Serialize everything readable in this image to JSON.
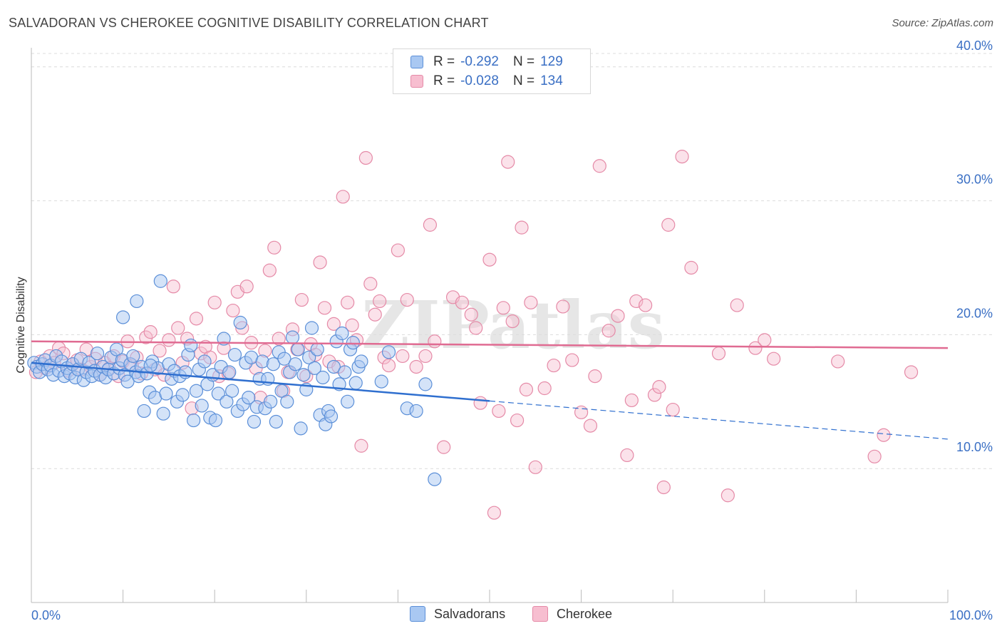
{
  "title": "SALVADORAN VS CHEROKEE COGNITIVE DISABILITY CORRELATION CHART",
  "source": "Source: ZipAtlas.com",
  "watermark": "ZIPatlas",
  "legend": {
    "rows": [
      {
        "r_label": "R =",
        "r_value": "-0.292",
        "n_label": "N =",
        "n_value": "129"
      },
      {
        "r_label": "R =",
        "r_value": "-0.028",
        "n_label": "N =",
        "n_value": "134"
      }
    ]
  },
  "bottom_legend": [
    "Salvadorans",
    "Cherokee"
  ],
  "colors": {
    "salvadoran_fill": "#a9c8f2",
    "salvadoran_stroke": "#5b8fd8",
    "salvadoran_line": "#2f6fcf",
    "cherokee_fill": "#f7bed0",
    "cherokee_stroke": "#e58aa7",
    "cherokee_line": "#e06b92",
    "tick_text": "#3a6fc4",
    "grid": "#dcdcdc"
  },
  "chart_data": {
    "type": "scatter",
    "title": "SALVADORAN VS CHEROKEE COGNITIVE DISABILITY CORRELATION CHART",
    "xlabel": "",
    "ylabel": "Cognitive Disability",
    "xlim": [
      0,
      100
    ],
    "ylim": [
      0,
      41
    ],
    "x_ticks": [
      "0.0%",
      "100.0%"
    ],
    "y_ticks": [
      {
        "value": 10,
        "label": "10.0%"
      },
      {
        "value": 20,
        "label": "20.0%"
      },
      {
        "value": 30,
        "label": "30.0%"
      },
      {
        "value": 40,
        "label": "40.0%"
      }
    ],
    "grid": true,
    "legend_position": "top-center",
    "series": [
      {
        "name": "Salvadorans",
        "r": -0.292,
        "n": 129,
        "trend": {
          "x": [
            0,
            100
          ],
          "y": [
            17.9,
            12.2
          ],
          "solid_until_x": 50
        },
        "points": [
          [
            0.3,
            17.9
          ],
          [
            0.6,
            17.6
          ],
          [
            0.9,
            17.2
          ],
          [
            1.2,
            17.8
          ],
          [
            1.5,
            18.1
          ],
          [
            1.8,
            17.4
          ],
          [
            2.1,
            17.7
          ],
          [
            2.4,
            17.0
          ],
          [
            2.7,
            18.4
          ],
          [
            3.0,
            17.3
          ],
          [
            3.3,
            18.0
          ],
          [
            3.6,
            16.9
          ],
          [
            3.9,
            17.5
          ],
          [
            4.2,
            17.1
          ],
          [
            4.5,
            17.8
          ],
          [
            4.8,
            16.8
          ],
          [
            5.1,
            17.4
          ],
          [
            5.4,
            18.2
          ],
          [
            5.7,
            16.6
          ],
          [
            6.0,
            17.2
          ],
          [
            6.3,
            17.9
          ],
          [
            6.6,
            16.9
          ],
          [
            6.9,
            17.3
          ],
          [
            7.2,
            18.6
          ],
          [
            7.5,
            17.0
          ],
          [
            7.8,
            17.6
          ],
          [
            8.1,
            16.8
          ],
          [
            8.4,
            17.4
          ],
          [
            8.7,
            18.3
          ],
          [
            9.0,
            17.1
          ],
          [
            9.3,
            18.9
          ],
          [
            9.6,
            17.5
          ],
          [
            9.9,
            18.1
          ],
          [
            10.2,
            17.0
          ],
          [
            10.5,
            16.5
          ],
          [
            10.8,
            17.8
          ],
          [
            11.1,
            18.4
          ],
          [
            11.4,
            17.2
          ],
          [
            11.7,
            16.9
          ],
          [
            12.0,
            17.6
          ],
          [
            12.3,
            14.3
          ],
          [
            12.6,
            17.1
          ],
          [
            12.9,
            15.7
          ],
          [
            13.2,
            18.0
          ],
          [
            13.5,
            15.3
          ],
          [
            13.8,
            17.5
          ],
          [
            14.1,
            24.0
          ],
          [
            14.4,
            14.1
          ],
          [
            14.7,
            15.6
          ],
          [
            15.0,
            17.8
          ],
          [
            15.3,
            16.7
          ],
          [
            15.6,
            17.3
          ],
          [
            15.9,
            15.0
          ],
          [
            16.2,
            16.9
          ],
          [
            16.5,
            15.5
          ],
          [
            16.8,
            17.2
          ],
          [
            17.1,
            18.5
          ],
          [
            17.4,
            19.2
          ],
          [
            17.7,
            13.6
          ],
          [
            18.0,
            15.8
          ],
          [
            18.3,
            17.4
          ],
          [
            18.6,
            14.7
          ],
          [
            18.9,
            18.0
          ],
          [
            19.2,
            16.3
          ],
          [
            19.5,
            13.8
          ],
          [
            19.8,
            17.0
          ],
          [
            20.1,
            13.6
          ],
          [
            20.4,
            15.6
          ],
          [
            20.7,
            17.6
          ],
          [
            21.0,
            19.7
          ],
          [
            21.3,
            15.0
          ],
          [
            21.6,
            17.2
          ],
          [
            21.9,
            15.8
          ],
          [
            22.2,
            18.5
          ],
          [
            22.5,
            14.3
          ],
          [
            22.8,
            20.9
          ],
          [
            23.1,
            14.8
          ],
          [
            23.4,
            17.9
          ],
          [
            23.7,
            15.3
          ],
          [
            24.0,
            18.3
          ],
          [
            24.3,
            13.5
          ],
          [
            24.6,
            14.6
          ],
          [
            24.9,
            16.7
          ],
          [
            25.2,
            18.0
          ],
          [
            25.5,
            14.5
          ],
          [
            25.8,
            16.7
          ],
          [
            26.1,
            15.0
          ],
          [
            26.4,
            17.8
          ],
          [
            26.7,
            13.5
          ],
          [
            27.0,
            18.7
          ],
          [
            27.3,
            15.8
          ],
          [
            27.6,
            18.2
          ],
          [
            27.9,
            15.0
          ],
          [
            28.2,
            17.2
          ],
          [
            28.5,
            19.8
          ],
          [
            28.8,
            17.8
          ],
          [
            29.1,
            18.9
          ],
          [
            29.4,
            13.0
          ],
          [
            29.7,
            17.0
          ],
          [
            30.0,
            15.9
          ],
          [
            30.3,
            18.3
          ],
          [
            30.6,
            20.5
          ],
          [
            30.9,
            17.5
          ],
          [
            31.2,
            18.9
          ],
          [
            31.5,
            14.0
          ],
          [
            31.8,
            16.8
          ],
          [
            32.1,
            13.3
          ],
          [
            32.4,
            14.3
          ],
          [
            32.7,
            13.9
          ],
          [
            33.0,
            17.6
          ],
          [
            33.3,
            19.5
          ],
          [
            33.6,
            16.3
          ],
          [
            33.9,
            20.1
          ],
          [
            34.2,
            17.2
          ],
          [
            34.5,
            15.0
          ],
          [
            34.8,
            18.9
          ],
          [
            35.1,
            19.4
          ],
          [
            35.4,
            16.4
          ],
          [
            35.7,
            17.6
          ],
          [
            36.0,
            18.0
          ],
          [
            38.2,
            16.5
          ],
          [
            39.0,
            18.7
          ],
          [
            41.0,
            14.5
          ],
          [
            42.0,
            14.3
          ],
          [
            43.0,
            16.3
          ],
          [
            44.0,
            9.2
          ],
          [
            10.0,
            21.3
          ],
          [
            11.5,
            22.5
          ],
          [
            13.0,
            17.7
          ]
        ]
      },
      {
        "name": "Cherokee",
        "r": -0.028,
        "n": 134,
        "trend": {
          "x": [
            0,
            100
          ],
          "y": [
            19.5,
            19.0
          ]
        },
        "points": [
          [
            0.5,
            17.2
          ],
          [
            1.0,
            18.0
          ],
          [
            1.5,
            17.5
          ],
          [
            2.0,
            18.4
          ],
          [
            2.5,
            17.9
          ],
          [
            3.0,
            19.0
          ],
          [
            3.5,
            18.6
          ],
          [
            4.0,
            17.3
          ],
          [
            4.5,
            17.8
          ],
          [
            5.0,
            18.1
          ],
          [
            5.5,
            17.4
          ],
          [
            6.0,
            18.9
          ],
          [
            6.5,
            17.6
          ],
          [
            7.0,
            18.2
          ],
          [
            7.5,
            17.0
          ],
          [
            8.0,
            17.9
          ],
          [
            8.5,
            17.5
          ],
          [
            9.0,
            18.4
          ],
          [
            9.5,
            16.9
          ],
          [
            10.0,
            18.0
          ],
          [
            10.5,
            19.5
          ],
          [
            11.0,
            17.7
          ],
          [
            11.5,
            18.3
          ],
          [
            12.0,
            17.1
          ],
          [
            12.5,
            19.8
          ],
          [
            13.0,
            20.2
          ],
          [
            13.5,
            17.4
          ],
          [
            14.0,
            18.8
          ],
          [
            14.5,
            17.0
          ],
          [
            15.0,
            19.6
          ],
          [
            15.5,
            23.6
          ],
          [
            16.0,
            20.5
          ],
          [
            16.5,
            17.9
          ],
          [
            17.0,
            19.7
          ],
          [
            17.5,
            14.5
          ],
          [
            18.0,
            21.2
          ],
          [
            18.5,
            18.6
          ],
          [
            19.0,
            19.1
          ],
          [
            19.5,
            18.3
          ],
          [
            20.0,
            22.4
          ],
          [
            20.5,
            16.9
          ],
          [
            21.0,
            19.0
          ],
          [
            21.5,
            17.1
          ],
          [
            22.0,
            21.8
          ],
          [
            22.5,
            23.2
          ],
          [
            23.0,
            20.5
          ],
          [
            23.5,
            23.6
          ],
          [
            24.0,
            19.4
          ],
          [
            24.5,
            17.5
          ],
          [
            25.0,
            15.3
          ],
          [
            25.5,
            18.8
          ],
          [
            26.0,
            24.8
          ],
          [
            26.5,
            26.5
          ],
          [
            27.0,
            19.7
          ],
          [
            27.5,
            15.8
          ],
          [
            28.0,
            17.2
          ],
          [
            28.5,
            20.4
          ],
          [
            29.0,
            18.9
          ],
          [
            29.5,
            22.6
          ],
          [
            30.0,
            16.9
          ],
          [
            30.5,
            19.3
          ],
          [
            31.0,
            18.5
          ],
          [
            31.5,
            25.4
          ],
          [
            32.0,
            22.0
          ],
          [
            32.5,
            18.0
          ],
          [
            33.0,
            20.8
          ],
          [
            33.5,
            17.6
          ],
          [
            34.0,
            30.3
          ],
          [
            34.5,
            22.4
          ],
          [
            35.0,
            20.7
          ],
          [
            35.5,
            19.6
          ],
          [
            36.0,
            11.7
          ],
          [
            36.5,
            33.2
          ],
          [
            37.0,
            23.8
          ],
          [
            37.5,
            21.5
          ],
          [
            38.0,
            22.5
          ],
          [
            38.5,
            18.3
          ],
          [
            39.0,
            17.7
          ],
          [
            40.0,
            26.3
          ],
          [
            40.5,
            18.4
          ],
          [
            41.0,
            22.6
          ],
          [
            42.0,
            17.6
          ],
          [
            43.0,
            18.4
          ],
          [
            43.5,
            28.2
          ],
          [
            44.0,
            19.5
          ],
          [
            45.0,
            11.6
          ],
          [
            46.0,
            22.8
          ],
          [
            47.0,
            22.4
          ],
          [
            48.0,
            21.5
          ],
          [
            48.5,
            20.5
          ],
          [
            49.0,
            14.9
          ],
          [
            50.0,
            25.6
          ],
          [
            50.5,
            6.7
          ],
          [
            51.0,
            14.3
          ],
          [
            51.5,
            22.0
          ],
          [
            52.0,
            32.9
          ],
          [
            52.5,
            21.0
          ],
          [
            53.0,
            13.6
          ],
          [
            53.5,
            28.0
          ],
          [
            54.0,
            15.9
          ],
          [
            54.5,
            22.4
          ],
          [
            55.0,
            10.1
          ],
          [
            56.0,
            16.0
          ],
          [
            57.0,
            17.7
          ],
          [
            58.0,
            22.1
          ],
          [
            59.0,
            18.1
          ],
          [
            60.0,
            14.2
          ],
          [
            61.0,
            13.2
          ],
          [
            61.5,
            16.9
          ],
          [
            62.0,
            32.6
          ],
          [
            63.0,
            20.3
          ],
          [
            64.0,
            21.4
          ],
          [
            65.0,
            11.0
          ],
          [
            65.5,
            15.1
          ],
          [
            66.0,
            22.5
          ],
          [
            67.0,
            22.2
          ],
          [
            68.0,
            15.5
          ],
          [
            68.5,
            16.1
          ],
          [
            69.0,
            8.6
          ],
          [
            69.5,
            28.2
          ],
          [
            70.0,
            14.4
          ],
          [
            71.0,
            33.3
          ],
          [
            72.0,
            25.0
          ],
          [
            75.0,
            18.6
          ],
          [
            76.0,
            8.0
          ],
          [
            77.0,
            22.2
          ],
          [
            79.0,
            19.0
          ],
          [
            80.0,
            19.6
          ],
          [
            81.0,
            18.2
          ],
          [
            88.0,
            18.0
          ],
          [
            92.0,
            10.9
          ],
          [
            93.0,
            12.5
          ],
          [
            96.0,
            17.2
          ]
        ]
      }
    ]
  }
}
